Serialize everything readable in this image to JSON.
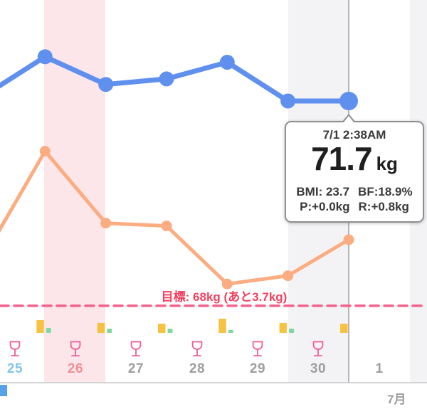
{
  "chart_data": {
    "type": "line",
    "title": "",
    "x": [
      "6/25",
      "6/26",
      "6/27",
      "6/28",
      "6/29",
      "6/30",
      "7/1"
    ],
    "series": [
      {
        "name": "weight_kg",
        "color": "#6090ee",
        "values": [
          71.8,
          72.5,
          72.0,
          72.1,
          72.4,
          71.7,
          71.7
        ]
      },
      {
        "name": "body_fat_pct",
        "color": "#fbac80",
        "values": [
          18.6,
          20.5,
          19.2,
          19.15,
          18.1,
          18.25,
          18.9
        ]
      }
    ],
    "goal": {
      "label": "目標: 68kg (あと3.7kg)",
      "weight_kg": 68,
      "remaining_kg": 3.7
    },
    "selected_index": 6,
    "markers": [
      {
        "day": "6/26",
        "yellow": 18,
        "green": 7
      },
      {
        "day": "6/27",
        "yellow": 14,
        "green": 6
      },
      {
        "day": "6/28",
        "yellow": 13,
        "green": 6
      },
      {
        "day": "6/29",
        "yellow": 20,
        "green": 4
      },
      {
        "day": "6/30",
        "yellow": 14,
        "green": 6
      },
      {
        "day": "7/1",
        "yellow": 13,
        "green": 0
      }
    ],
    "drink_icon_days": [
      "6/25",
      "6/26",
      "6/27",
      "6/28",
      "6/29",
      "6/30"
    ],
    "legend": "off",
    "grid": "day-bands"
  },
  "tooltip": {
    "date": "7/1 2:38AM",
    "weight": "71.7",
    "unit": "kg",
    "bmi": "BMI: 23.7",
    "bf": "BF:18.9%",
    "p": "P:+0.0kg",
    "r": "R:+0.8kg"
  },
  "axis": {
    "days": [
      {
        "label": "25",
        "color": "#85c6ec"
      },
      {
        "label": "26",
        "color": "#ef9097"
      },
      {
        "label": "27",
        "color": "#9e9e9e"
      },
      {
        "label": "28",
        "color": "#9e9e9e"
      },
      {
        "label": "29",
        "color": "#9e9e9e"
      },
      {
        "label": "30",
        "color": "#9e9e9e"
      },
      {
        "label": "1",
        "color": "#9e9e9e"
      }
    ],
    "month": "7月"
  },
  "colors": {
    "goal_line": "#f4628c",
    "goal_text": "#f2415f",
    "bar_yellow": "#f7c243",
    "bar_green": "#7fd8a4",
    "indicator": "#b5b5b5",
    "band_pink": "#fce6ea",
    "band_gray": "#f3f3f5",
    "drink_icon": "#ef5f9b"
  }
}
